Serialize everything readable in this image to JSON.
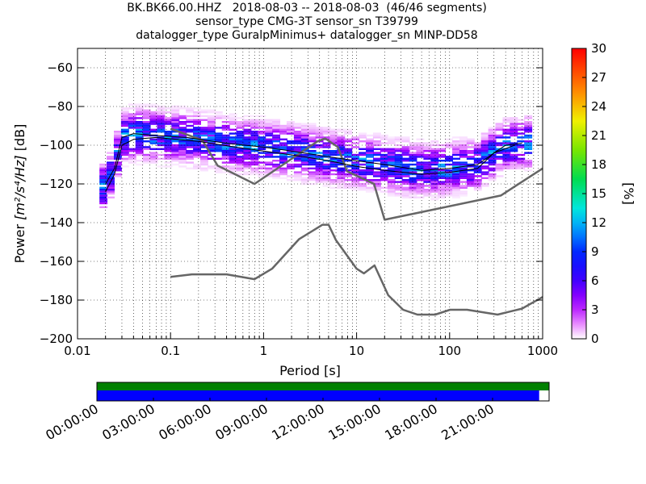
{
  "title_lines": [
    "BK.BK66.00.HHZ   2018-08-03 -- 2018-08-03  (46/46 segments)",
    "sensor_type CMG-3T sensor_sn T39799",
    "datalogger_type GuralpMinimus+ datalogger_sn MINP-DD58"
  ],
  "chart_data": {
    "type": "heatmap",
    "xlabel": "Period [s]",
    "ylabel_prefix": "Power ",
    "ylabel_units": "[m²/s⁴/Hz]",
    "ylabel_suffix": " [dB]",
    "x_scale": "log",
    "xlim": [
      0.01,
      1000
    ],
    "ylim": [
      -200,
      -50
    ],
    "xticks": [
      {
        "v": 0.01,
        "label": "0.01"
      },
      {
        "v": 0.1,
        "label": "0.1"
      },
      {
        "v": 1,
        "label": "1"
      },
      {
        "v": 10,
        "label": "10"
      },
      {
        "v": 100,
        "label": "100"
      },
      {
        "v": 1000,
        "label": "1000"
      }
    ],
    "yticks": [
      -60,
      -80,
      -100,
      -120,
      -140,
      -160,
      -180,
      -200
    ],
    "grid": true,
    "colorbar": {
      "label": "[%]",
      "range": [
        0,
        30
      ],
      "ticks": [
        0,
        3,
        6,
        9,
        12,
        15,
        18,
        21,
        24,
        27,
        30
      ]
    },
    "noise_model_high": {
      "x": [
        0.1,
        0.22,
        0.32,
        0.8,
        3.8,
        4.6,
        6.3,
        7.9,
        15.4,
        20,
        354.8,
        1000
      ],
      "y": [
        -91.5,
        -97.4,
        -110.5,
        -120,
        -98,
        -96.5,
        -101,
        -113.5,
        -120,
        -138.5,
        -126,
        -112
      ]
    },
    "noise_model_low": {
      "x": [
        0.1,
        0.17,
        0.4,
        0.8,
        1.24,
        2.4,
        4.3,
        5,
        6,
        10,
        12,
        15.6,
        21.9,
        31.6,
        45,
        70,
        101,
        154,
        328,
        600,
        1000
      ],
      "y": [
        -168,
        -166.7,
        -166.7,
        -169.2,
        -163.7,
        -148.6,
        -141.1,
        -141.1,
        -149,
        -163.8,
        -166.2,
        -162.1,
        -177.5,
        -185,
        -187.5,
        -187.5,
        -185,
        -185,
        -187.5,
        -184.4,
        -178.4
      ]
    },
    "mean_curve": {
      "x": [
        0.02,
        0.025,
        0.03,
        0.04,
        0.07,
        0.2,
        0.5,
        1,
        2,
        5,
        10,
        20,
        50,
        100,
        200,
        300,
        500
      ],
      "y": [
        -124,
        -115,
        -100,
        -97,
        -96,
        -98,
        -101,
        -103,
        -105,
        -108,
        -111,
        -113,
        -115,
        -114,
        -112,
        -104,
        -100
      ]
    },
    "mode_curve": {
      "x": [
        0.02,
        0.025,
        0.03,
        0.04,
        0.07,
        0.15,
        0.4,
        1,
        2,
        5,
        10,
        20,
        50,
        100,
        200,
        300,
        400,
        600
      ],
      "y": [
        -120,
        -112,
        -96,
        -94,
        -95,
        -96,
        -99,
        -101,
        -103,
        -106,
        -108,
        -110,
        -113,
        -112,
        -110,
        -104,
        -100,
        -99
      ]
    }
  },
  "timeline": {
    "ticks": [
      "00:00:00",
      "03:00:00",
      "06:00:00",
      "09:00:00",
      "12:00:00",
      "15:00:00",
      "18:00:00",
      "21:00:00"
    ],
    "data_coverage_fraction": 0.978,
    "colors": {
      "green": "#008000",
      "blue": "#0000ff"
    }
  },
  "colors": {
    "noise_model": "#666666",
    "curve": "#000000"
  }
}
